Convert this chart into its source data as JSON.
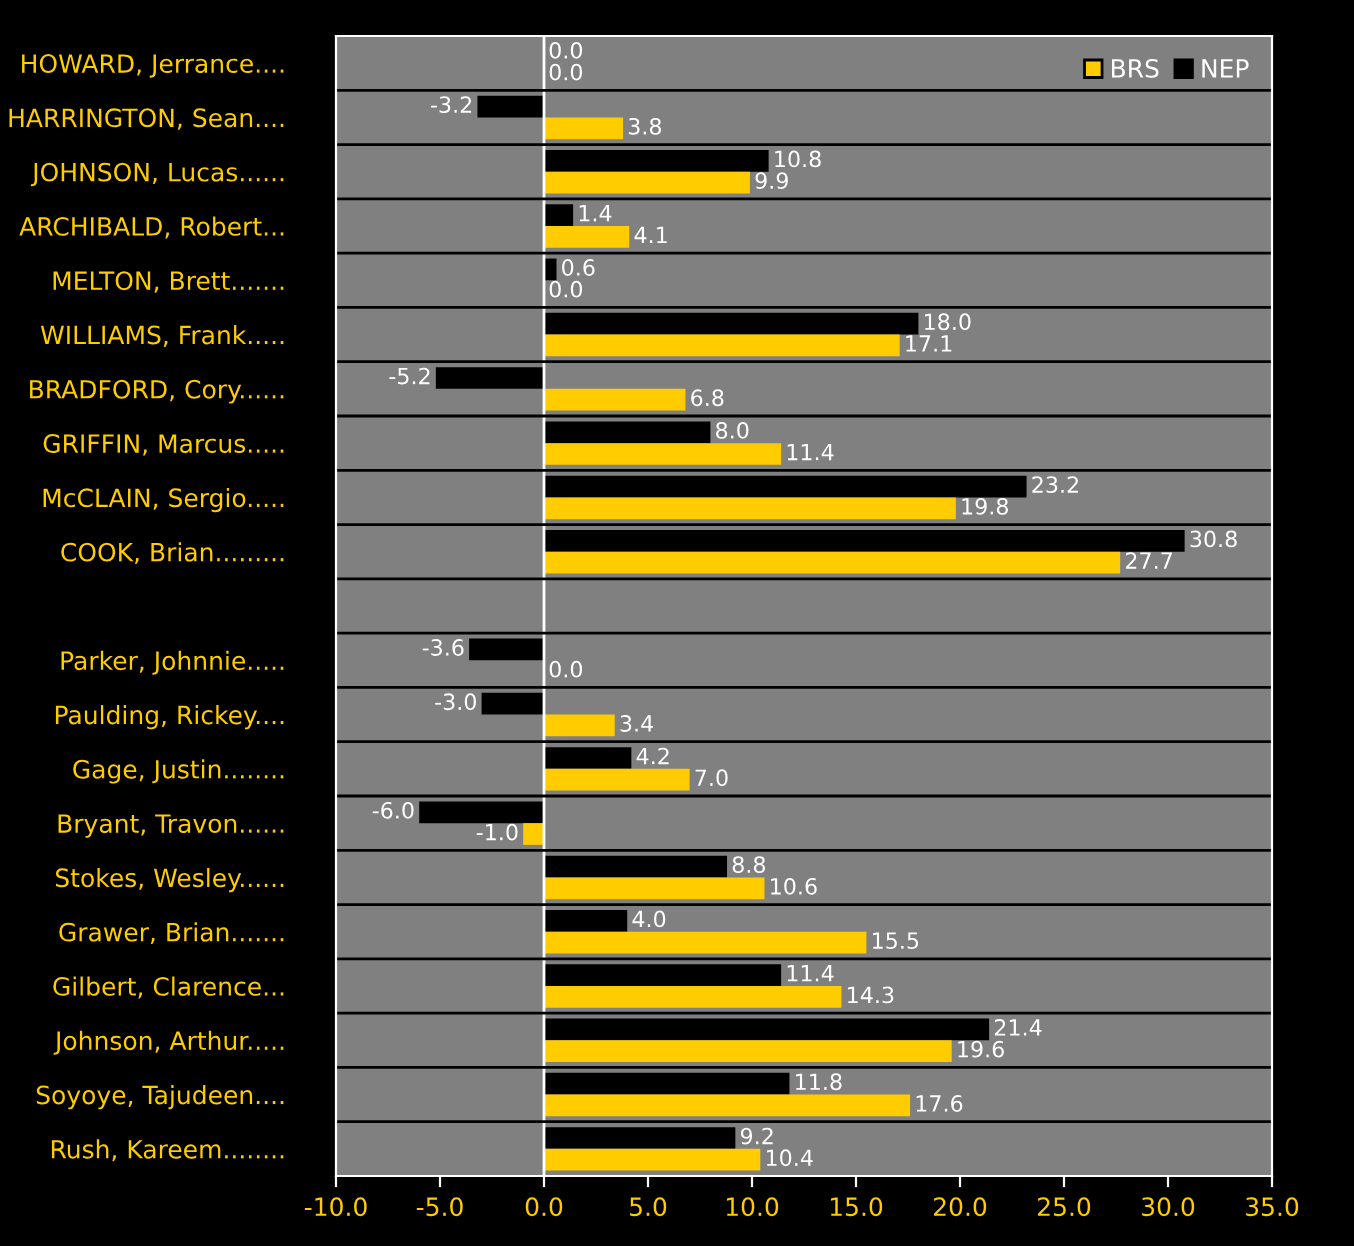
{
  "chart_data": {
    "type": "bar",
    "orientation": "horizontal",
    "categories": [
      "HOWARD, Jerrance....",
      "HARRINGTON, Sean....",
      "JOHNSON, Lucas......",
      "ARCHIBALD, Robert...",
      "MELTON, Brett.......",
      "WILLIAMS, Frank.....",
      "BRADFORD, Cory......",
      "GRIFFIN, Marcus.....",
      "McCLAIN, Sergio.....",
      "COOK, Brian.........",
      null,
      "Parker, Johnnie.....",
      "Paulding, Rickey....",
      "Gage, Justin........",
      "Bryant, Travon......",
      "Stokes, Wesley......",
      "Grawer, Brian.......",
      "Gilbert, Clarence...",
      "Johnson, Arthur.....",
      "Soyoye, Tajudeen....",
      "Rush, Kareem........"
    ],
    "series": [
      {
        "name": "NEP",
        "color": "#000000",
        "values": [
          0.0,
          -3.2,
          10.8,
          1.4,
          0.6,
          18.0,
          -5.2,
          8.0,
          23.2,
          30.8,
          null,
          -3.6,
          -3.0,
          4.2,
          -6.0,
          8.8,
          4.0,
          11.4,
          21.4,
          11.8,
          9.2
        ],
        "value_labels": [
          "0.0",
          "-3.2",
          "10.8",
          "1.4",
          "0.6",
          "18.0",
          "-5.2",
          "8.0",
          "23.2",
          "30.8",
          null,
          "-3.6",
          "-3.0",
          "4.2",
          "-6.0",
          "8.8",
          "4.0",
          "11.4",
          "21.4",
          "11.8",
          "9.2"
        ]
      },
      {
        "name": "BRS",
        "color": "#ffcc00",
        "values": [
          0.0,
          3.8,
          9.9,
          4.1,
          0.0,
          17.1,
          6.8,
          11.4,
          19.8,
          27.7,
          null,
          0.0,
          3.4,
          7.0,
          -1.0,
          10.6,
          15.5,
          14.3,
          19.6,
          17.6,
          10.4
        ],
        "value_labels": [
          "0.0",
          "3.8",
          "9.9",
          "4.1",
          "0.0",
          "17.1",
          "6.8",
          "11.4",
          "19.8",
          "27.7",
          null,
          "0.0",
          "3.4",
          "7.0",
          "-1.0",
          "10.6",
          "15.5",
          "14.3",
          "19.6",
          "17.6",
          "10.4"
        ]
      }
    ],
    "xlim": [
      -10,
      35
    ],
    "xticks": [
      {
        "value": -10,
        "label": "-10.0"
      },
      {
        "value": -5,
        "label": "-5.0"
      },
      {
        "value": 0,
        "label": "0.0"
      },
      {
        "value": 5,
        "label": "5.0"
      },
      {
        "value": 10,
        "label": "10.0"
      },
      {
        "value": 15,
        "label": "15.0"
      },
      {
        "value": 20,
        "label": "20.0"
      },
      {
        "value": 25,
        "label": "25.0"
      },
      {
        "value": 30,
        "label": "30.0"
      },
      {
        "value": 35,
        "label": "35.0"
      }
    ],
    "grid": "y",
    "legend": "top right"
  }
}
